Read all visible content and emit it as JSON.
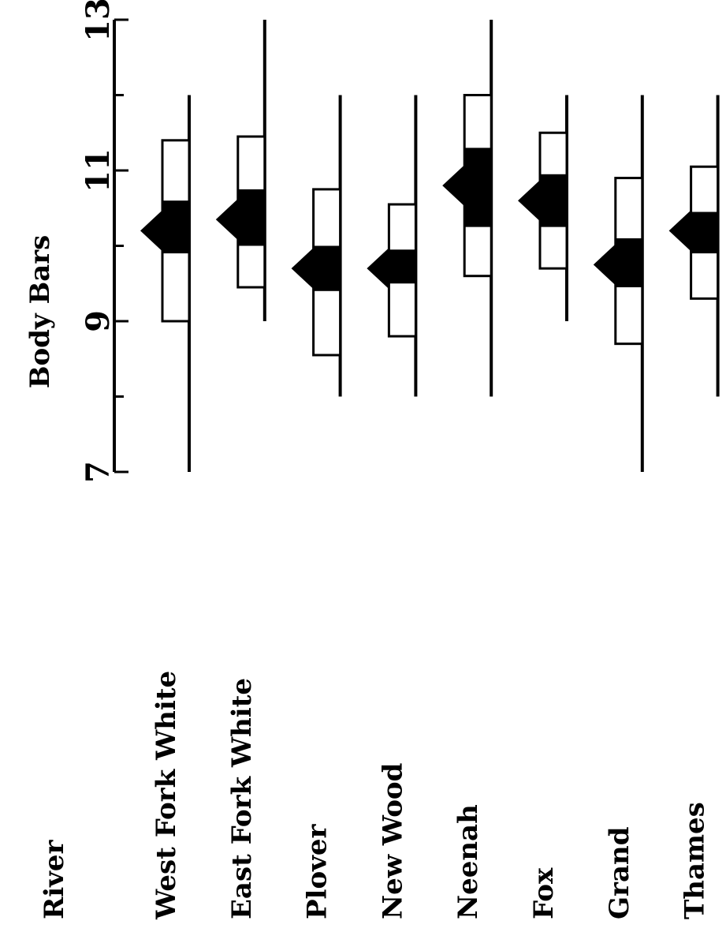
{
  "chart_data": {
    "type": "box",
    "orientation": "rotated-90",
    "ylabel": "Body Bars",
    "category_header": "River",
    "ylim": [
      7,
      13
    ],
    "yticks": [
      7,
      9,
      11,
      13
    ],
    "grid": false,
    "series": [
      {
        "name": "West Fork White",
        "min": 7.0,
        "q1": 9.0,
        "mean_low": 9.9,
        "mean": 10.2,
        "mean_high": 10.6,
        "q3": 11.4,
        "max": 12.0
      },
      {
        "name": "East Fork White",
        "min": 9.0,
        "q1": 9.45,
        "mean_low": 10.0,
        "mean": 10.35,
        "mean_high": 10.75,
        "q3": 11.45,
        "max": 13.0
      },
      {
        "name": "Plover",
        "min": 8.0,
        "q1": 8.55,
        "mean_low": 9.4,
        "mean": 9.7,
        "mean_high": 10.0,
        "q3": 10.75,
        "max": 12.0
      },
      {
        "name": "New Wood",
        "min": 8.0,
        "q1": 8.8,
        "mean_low": 9.5,
        "mean": 9.7,
        "mean_high": 9.95,
        "q3": 10.55,
        "max": 12.0
      },
      {
        "name": "Neenah",
        "min": 8.0,
        "q1": 9.6,
        "mean_low": 10.25,
        "mean": 10.8,
        "mean_high": 11.3,
        "q3": 12.0,
        "max": 13.0
      },
      {
        "name": "Fox",
        "min": 9.0,
        "q1": 9.7,
        "mean_low": 10.25,
        "mean": 10.6,
        "mean_high": 10.95,
        "q3": 11.5,
        "max": 12.0
      },
      {
        "name": "Grand",
        "min": 7.0,
        "q1": 8.7,
        "mean_low": 9.45,
        "mean": 9.75,
        "mean_high": 10.1,
        "q3": 10.9,
        "max": 12.0
      },
      {
        "name": "Thames",
        "min": 8.0,
        "q1": 9.3,
        "mean_low": 9.9,
        "mean": 10.2,
        "mean_high": 10.45,
        "q3": 11.05,
        "max": 12.0
      }
    ]
  }
}
